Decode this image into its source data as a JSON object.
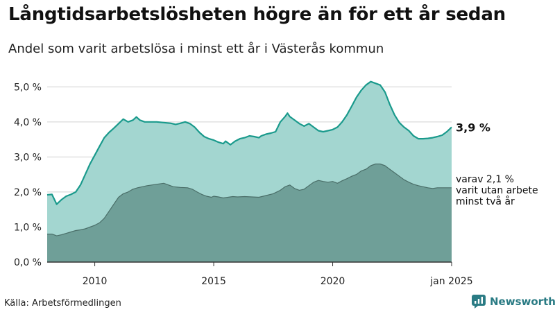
{
  "title": "Långtidsarbetslösheten högre än för ett år sedan",
  "subtitle": "Andel som varit arbetslösa i minst ett år i Västerås kommun",
  "source": "Källa: Arbetsförmedlingen",
  "brand": "Newsworthy",
  "colors": {
    "total_fill": "#a3d6d0",
    "total_line": "#1a9a8c",
    "long_fill": "#6f9f98",
    "long_line": "#4a6e68",
    "grid": "#d0d0d0",
    "brand": "#2a7b84"
  },
  "chart_data": {
    "type": "area",
    "ylim": [
      0,
      5.5
    ],
    "xlim": [
      2008,
      2025
    ],
    "yticks": [
      {
        "value": 0,
        "label": "0,0 %"
      },
      {
        "value": 1,
        "label": "1,0 %"
      },
      {
        "value": 2,
        "label": "2,0 %"
      },
      {
        "value": 3,
        "label": "3,0 %"
      },
      {
        "value": 4,
        "label": "4,0 %"
      },
      {
        "value": 5,
        "label": "5,0 %"
      }
    ],
    "xticks": [
      {
        "value": 2010,
        "label": "2010"
      },
      {
        "value": 2015,
        "label": "2015"
      },
      {
        "value": 2020,
        "label": "2020"
      },
      {
        "value": 2025,
        "label": "jan 2025"
      }
    ],
    "grid": true,
    "series": [
      {
        "key": "total",
        "end_label": "3,9 %",
        "points": [
          [
            2008.0,
            1.92
          ],
          [
            2008.2,
            1.93
          ],
          [
            2008.4,
            1.65
          ],
          [
            2008.6,
            1.78
          ],
          [
            2008.8,
            1.88
          ],
          [
            2009.0,
            1.93
          ],
          [
            2009.2,
            2.0
          ],
          [
            2009.4,
            2.2
          ],
          [
            2009.6,
            2.5
          ],
          [
            2009.8,
            2.8
          ],
          [
            2010.0,
            3.05
          ],
          [
            2010.2,
            3.3
          ],
          [
            2010.4,
            3.55
          ],
          [
            2010.6,
            3.7
          ],
          [
            2010.8,
            3.82
          ],
          [
            2011.0,
            3.95
          ],
          [
            2011.2,
            4.08
          ],
          [
            2011.4,
            4.0
          ],
          [
            2011.6,
            4.05
          ],
          [
            2011.75,
            4.14
          ],
          [
            2011.9,
            4.05
          ],
          [
            2012.1,
            4.0
          ],
          [
            2012.3,
            4.0
          ],
          [
            2012.6,
            4.0
          ],
          [
            2012.9,
            3.98
          ],
          [
            2013.2,
            3.96
          ],
          [
            2013.4,
            3.93
          ],
          [
            2013.6,
            3.96
          ],
          [
            2013.8,
            4.0
          ],
          [
            2014.0,
            3.95
          ],
          [
            2014.2,
            3.85
          ],
          [
            2014.4,
            3.7
          ],
          [
            2014.6,
            3.58
          ],
          [
            2014.8,
            3.52
          ],
          [
            2015.0,
            3.48
          ],
          [
            2015.2,
            3.42
          ],
          [
            2015.4,
            3.38
          ],
          [
            2015.5,
            3.45
          ],
          [
            2015.7,
            3.35
          ],
          [
            2015.9,
            3.45
          ],
          [
            2016.1,
            3.52
          ],
          [
            2016.3,
            3.55
          ],
          [
            2016.5,
            3.6
          ],
          [
            2016.7,
            3.58
          ],
          [
            2016.9,
            3.55
          ],
          [
            2017.0,
            3.6
          ],
          [
            2017.2,
            3.65
          ],
          [
            2017.4,
            3.68
          ],
          [
            2017.6,
            3.72
          ],
          [
            2017.8,
            4.0
          ],
          [
            2018.0,
            4.15
          ],
          [
            2018.1,
            4.25
          ],
          [
            2018.2,
            4.15
          ],
          [
            2018.4,
            4.05
          ],
          [
            2018.6,
            3.95
          ],
          [
            2018.8,
            3.88
          ],
          [
            2019.0,
            3.95
          ],
          [
            2019.2,
            3.85
          ],
          [
            2019.4,
            3.75
          ],
          [
            2019.6,
            3.72
          ],
          [
            2019.8,
            3.75
          ],
          [
            2020.0,
            3.78
          ],
          [
            2020.2,
            3.85
          ],
          [
            2020.4,
            4.0
          ],
          [
            2020.6,
            4.2
          ],
          [
            2020.8,
            4.45
          ],
          [
            2021.0,
            4.7
          ],
          [
            2021.2,
            4.9
          ],
          [
            2021.4,
            5.05
          ],
          [
            2021.6,
            5.15
          ],
          [
            2021.8,
            5.1
          ],
          [
            2022.0,
            5.05
          ],
          [
            2022.2,
            4.85
          ],
          [
            2022.4,
            4.5
          ],
          [
            2022.6,
            4.2
          ],
          [
            2022.8,
            3.98
          ],
          [
            2023.0,
            3.85
          ],
          [
            2023.2,
            3.75
          ],
          [
            2023.4,
            3.6
          ],
          [
            2023.6,
            3.52
          ],
          [
            2023.8,
            3.52
          ],
          [
            2024.0,
            3.53
          ],
          [
            2024.2,
            3.55
          ],
          [
            2024.4,
            3.58
          ],
          [
            2024.6,
            3.62
          ],
          [
            2024.8,
            3.72
          ],
          [
            2025.0,
            3.85
          ]
        ]
      },
      {
        "key": "long",
        "end_label": "varav 2,1 %\nvarit utan arbete\nminst två år",
        "points": [
          [
            2008.0,
            0.8
          ],
          [
            2008.2,
            0.8
          ],
          [
            2008.4,
            0.75
          ],
          [
            2008.6,
            0.78
          ],
          [
            2008.8,
            0.82
          ],
          [
            2009.0,
            0.86
          ],
          [
            2009.2,
            0.9
          ],
          [
            2009.4,
            0.92
          ],
          [
            2009.6,
            0.95
          ],
          [
            2009.8,
            1.0
          ],
          [
            2010.0,
            1.05
          ],
          [
            2010.2,
            1.12
          ],
          [
            2010.4,
            1.25
          ],
          [
            2010.6,
            1.45
          ],
          [
            2010.8,
            1.65
          ],
          [
            2011.0,
            1.85
          ],
          [
            2011.2,
            1.95
          ],
          [
            2011.4,
            2.0
          ],
          [
            2011.6,
            2.08
          ],
          [
            2011.8,
            2.12
          ],
          [
            2012.0,
            2.15
          ],
          [
            2012.2,
            2.18
          ],
          [
            2012.4,
            2.2
          ],
          [
            2012.7,
            2.23
          ],
          [
            2012.9,
            2.25
          ],
          [
            2013.1,
            2.2
          ],
          [
            2013.3,
            2.15
          ],
          [
            2013.6,
            2.13
          ],
          [
            2013.9,
            2.12
          ],
          [
            2014.1,
            2.08
          ],
          [
            2014.3,
            2.0
          ],
          [
            2014.5,
            1.93
          ],
          [
            2014.7,
            1.88
          ],
          [
            2014.9,
            1.85
          ],
          [
            2015.0,
            1.88
          ],
          [
            2015.2,
            1.86
          ],
          [
            2015.4,
            1.83
          ],
          [
            2015.6,
            1.85
          ],
          [
            2015.8,
            1.87
          ],
          [
            2016.0,
            1.86
          ],
          [
            2016.3,
            1.87
          ],
          [
            2016.6,
            1.86
          ],
          [
            2016.9,
            1.85
          ],
          [
            2017.2,
            1.9
          ],
          [
            2017.5,
            1.95
          ],
          [
            2017.8,
            2.05
          ],
          [
            2018.0,
            2.15
          ],
          [
            2018.2,
            2.2
          ],
          [
            2018.4,
            2.1
          ],
          [
            2018.6,
            2.05
          ],
          [
            2018.8,
            2.08
          ],
          [
            2019.0,
            2.18
          ],
          [
            2019.2,
            2.28
          ],
          [
            2019.4,
            2.33
          ],
          [
            2019.6,
            2.3
          ],
          [
            2019.8,
            2.28
          ],
          [
            2020.0,
            2.3
          ],
          [
            2020.2,
            2.25
          ],
          [
            2020.4,
            2.32
          ],
          [
            2020.6,
            2.38
          ],
          [
            2020.8,
            2.45
          ],
          [
            2021.0,
            2.5
          ],
          [
            2021.2,
            2.6
          ],
          [
            2021.4,
            2.65
          ],
          [
            2021.6,
            2.75
          ],
          [
            2021.8,
            2.8
          ],
          [
            2022.0,
            2.8
          ],
          [
            2022.2,
            2.75
          ],
          [
            2022.4,
            2.65
          ],
          [
            2022.6,
            2.55
          ],
          [
            2022.8,
            2.45
          ],
          [
            2023.0,
            2.35
          ],
          [
            2023.2,
            2.28
          ],
          [
            2023.4,
            2.22
          ],
          [
            2023.6,
            2.18
          ],
          [
            2023.8,
            2.15
          ],
          [
            2024.0,
            2.12
          ],
          [
            2024.2,
            2.1
          ],
          [
            2024.4,
            2.12
          ],
          [
            2024.6,
            2.12
          ],
          [
            2024.8,
            2.12
          ],
          [
            2025.0,
            2.12
          ]
        ]
      }
    ]
  }
}
